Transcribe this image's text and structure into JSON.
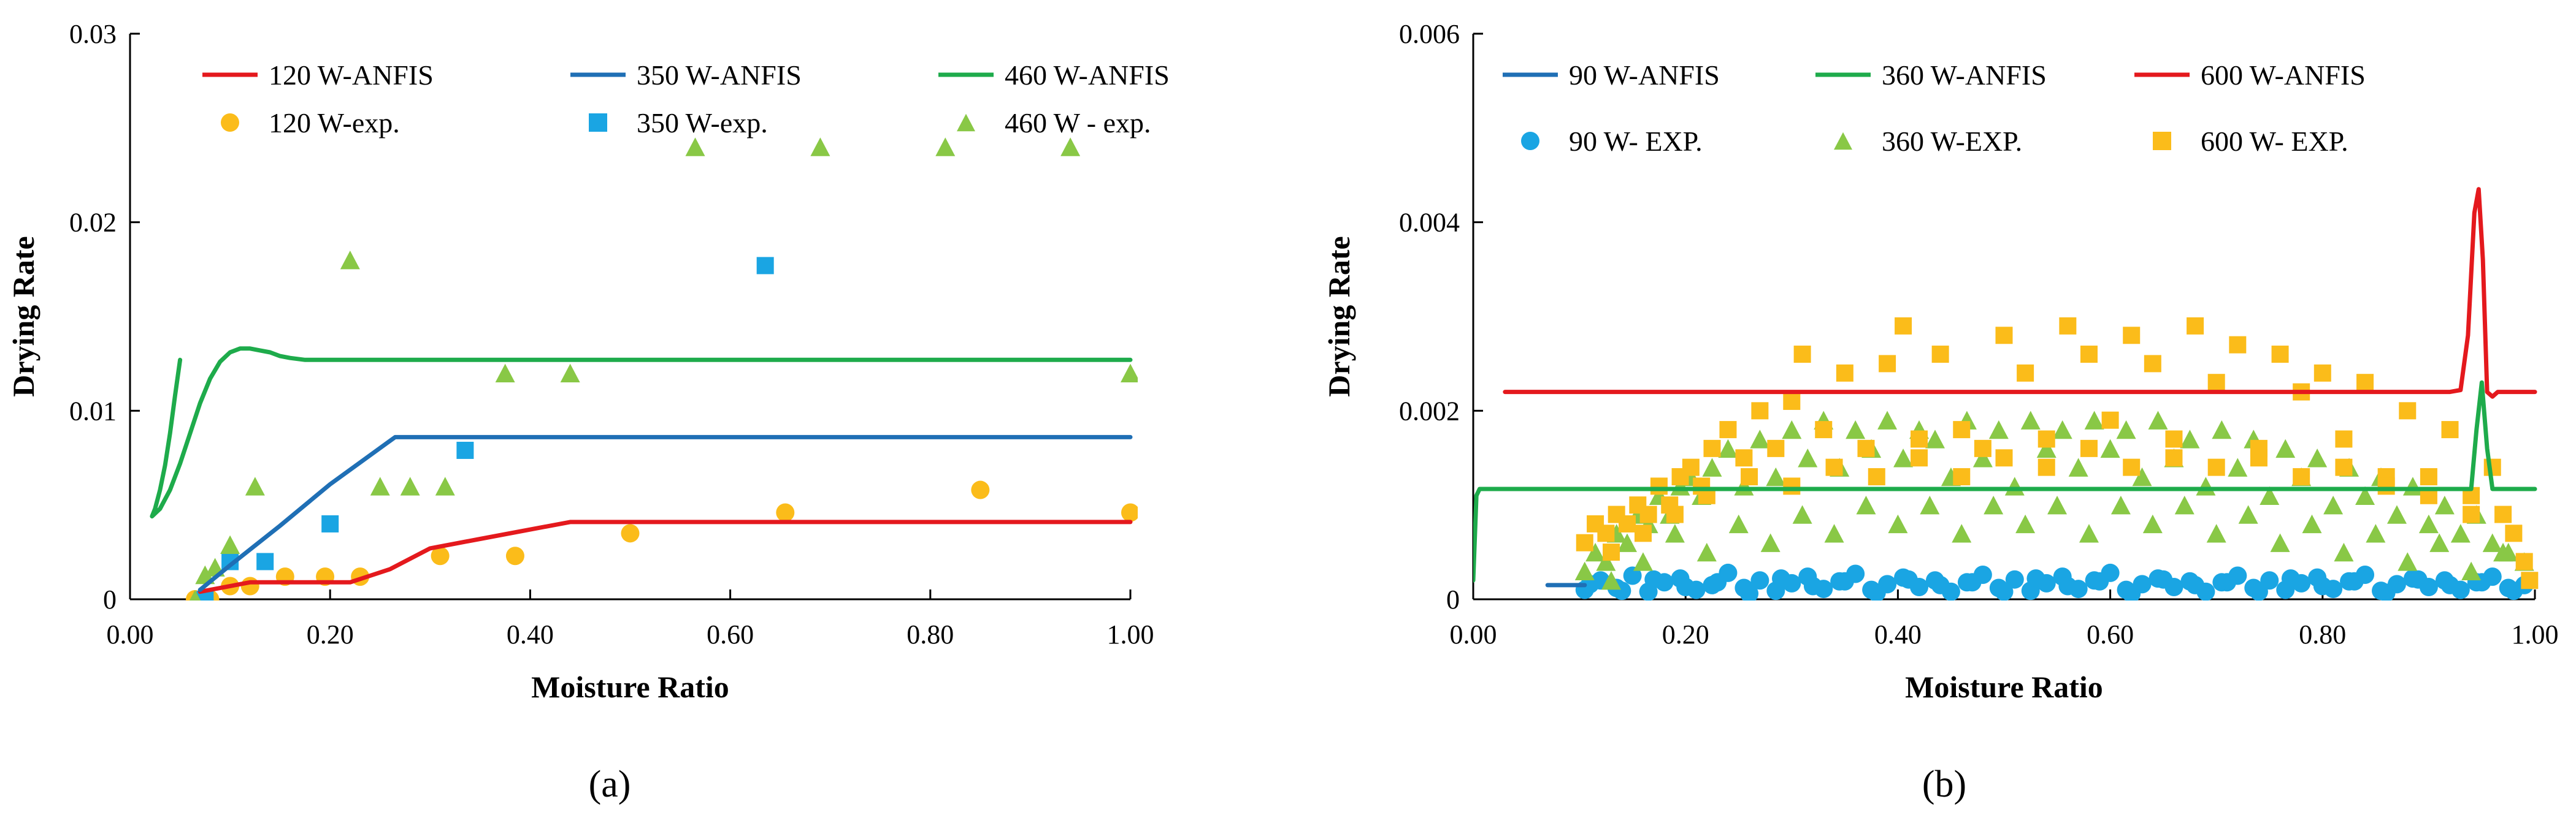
{
  "chart_data": [
    {
      "panel_label": "(a)",
      "type": "line",
      "xlabel": "Moisture Ratio",
      "ylabel": "Drying Rate",
      "xlim": [
        0,
        1
      ],
      "ylim": [
        0,
        0.03
      ],
      "x_ticks": [
        "0.00",
        "0.20",
        "0.40",
        "0.60",
        "0.80",
        "1.00"
      ],
      "y_ticks": [
        "0",
        "0.01",
        "0.02",
        "0.03"
      ],
      "grid": false,
      "legend": "top, 3 columns",
      "series": [
        {
          "name": "120 W-ANFIS",
          "kind": "line",
          "color": "#e4191d",
          "x": [
            0.07,
            0.12,
            0.2,
            0.22,
            0.26,
            0.3,
            0.35,
            0.44,
            0.6,
            0.8,
            1.0
          ],
          "y": [
            0.0004,
            0.0009,
            0.0009,
            0.0009,
            0.0016,
            0.0027,
            0.0032,
            0.0041,
            0.0041,
            0.0041,
            0.0041
          ]
        },
        {
          "name": "350 W-ANFIS",
          "kind": "line",
          "color": "#1f6fb5",
          "x": [
            0.07,
            0.1,
            0.15,
            0.2,
            0.265,
            0.4,
            0.6,
            0.8,
            1.0
          ],
          "y": [
            0.0005,
            0.0018,
            0.0039,
            0.0061,
            0.0086,
            0.0086,
            0.0086,
            0.0086,
            0.0086
          ]
        },
        {
          "name": "460 W-ANFIS",
          "kind": "line",
          "color": "#1eab4b",
          "x": [
            0.05,
            0.045,
            0.04,
            0.035,
            0.03,
            0.025,
            0.022,
            0.03,
            0.04,
            0.05,
            0.06,
            0.07,
            0.08,
            0.09,
            0.1,
            0.11,
            0.12,
            0.13,
            0.14,
            0.15,
            0.16,
            0.175,
            0.2,
            0.3,
            0.5,
            0.7,
            1.0
          ],
          "y": [
            0.0127,
            0.0108,
            0.0088,
            0.0071,
            0.0058,
            0.0048,
            0.0044,
            0.0048,
            0.0058,
            0.0072,
            0.0088,
            0.0104,
            0.0117,
            0.0126,
            0.0131,
            0.0133,
            0.0133,
            0.0132,
            0.0131,
            0.0129,
            0.0128,
            0.0127,
            0.0127,
            0.0127,
            0.0127,
            0.0127,
            0.0127
          ]
        },
        {
          "name": "120 W-exp.",
          "kind": "circle",
          "color": "#fbbc1a",
          "x": [
            0.065,
            0.08,
            0.1,
            0.12,
            0.155,
            0.195,
            0.23,
            0.31,
            0.385,
            0.5,
            0.655,
            0.85,
            1.0
          ],
          "y": [
            0.0,
            0.0,
            0.0007,
            0.0007,
            0.0012,
            0.0012,
            0.0012,
            0.0023,
            0.0023,
            0.0035,
            0.0046,
            0.0058,
            0.0046
          ]
        },
        {
          "name": "350 W-exp.",
          "kind": "square",
          "color": "#1aa5e3",
          "x": [
            0.075,
            0.1,
            0.135,
            0.2,
            0.335,
            0.635
          ],
          "y": [
            0.0,
            0.002,
            0.002,
            0.004,
            0.0079,
            0.0177
          ]
        },
        {
          "name": "460 W - exp.",
          "kind": "triangle",
          "color": "#89c846",
          "x": [
            0.065,
            0.075,
            0.085,
            0.1,
            0.125,
            0.22,
            0.25,
            0.28,
            0.315,
            0.375,
            0.44,
            0.565,
            0.69,
            0.815,
            0.94,
            1.0
          ],
          "y": [
            0.0,
            0.0013,
            0.0017,
            0.0029,
            0.006,
            0.018,
            0.006,
            0.006,
            0.006,
            0.012,
            0.012,
            0.024,
            0.024,
            0.024,
            0.024,
            0.012
          ]
        }
      ]
    },
    {
      "panel_label": "(b)",
      "type": "line",
      "xlabel": "Moisture Ratio",
      "ylabel": "Drying Rate",
      "xlim": [
        0,
        1
      ],
      "ylim": [
        0,
        0.006
      ],
      "x_ticks": [
        "0.00",
        "0.20",
        "0.40",
        "0.60",
        "0.80",
        "1.00"
      ],
      "y_ticks": [
        "0",
        "0.002",
        "0.004",
        "0.006"
      ],
      "grid": false,
      "legend": "top, 3 columns",
      "series": [
        {
          "name": "90 W-ANFIS",
          "kind": "line",
          "color": "#1f6fb5",
          "x": [
            0.07,
            0.105
          ],
          "y": [
            0.00015,
            0.00015
          ]
        },
        {
          "name": "360 W-ANFIS",
          "kind": "line",
          "color": "#1eab4b",
          "x": [
            0.0,
            0.003,
            0.006,
            0.5,
            0.94,
            0.945,
            0.95,
            0.955,
            0.96,
            1.0
          ],
          "y": [
            0.0002,
            0.0011,
            0.00117,
            0.00117,
            0.00117,
            0.0018,
            0.0023,
            0.0016,
            0.00117,
            0.00117
          ]
        },
        {
          "name": "600 W-ANFIS",
          "kind": "line",
          "color": "#e4191d",
          "x": [
            0.03,
            0.5,
            0.92,
            0.93,
            0.937,
            0.943,
            0.947,
            0.951,
            0.955,
            0.96,
            0.965,
            1.0
          ],
          "y": [
            0.0022,
            0.0022,
            0.0022,
            0.00222,
            0.0028,
            0.0041,
            0.00435,
            0.0036,
            0.0022,
            0.00215,
            0.0022,
            0.0022
          ]
        },
        {
          "name": "90 W- EXP.",
          "kind": "circle",
          "color": "#1aa5e3",
          "points_note": "dense band of points",
          "x": [
            0.105,
            0.12,
            0.135,
            0.15,
            0.165,
            0.18,
            0.195,
            0.21,
            0.225,
            0.24,
            0.255,
            0.27,
            0.285,
            0.3,
            0.315,
            0.33,
            0.345,
            0.36,
            0.375,
            0.39,
            0.405,
            0.42,
            0.435,
            0.45,
            0.465,
            0.48,
            0.495,
            0.51,
            0.525,
            0.54,
            0.555,
            0.57,
            0.585,
            0.6,
            0.615,
            0.63,
            0.645,
            0.66,
            0.675,
            0.69,
            0.705,
            0.72,
            0.735,
            0.75,
            0.765,
            0.78,
            0.795,
            0.81,
            0.825,
            0.84,
            0.855,
            0.87,
            0.885,
            0.9,
            0.915,
            0.93,
            0.945,
            0.96,
            0.975,
            0.99,
            0.11,
            0.14,
            0.17,
            0.2,
            0.23,
            0.26,
            0.29,
            0.32,
            0.35,
            0.38,
            0.41,
            0.44,
            0.47,
            0.5,
            0.53,
            0.56,
            0.59,
            0.62,
            0.65,
            0.68,
            0.71,
            0.74,
            0.77,
            0.8,
            0.83,
            0.86,
            0.89,
            0.92,
            0.95,
            0.98
          ],
          "y": [
            0.0001,
            0.0002,
            0.00012,
            0.00025,
            8e-05,
            0.00018,
            0.00022,
            0.0001,
            0.00015,
            0.00028,
            0.00012,
            0.0002,
            9e-05,
            0.00017,
            0.00024,
            0.00011,
            0.00019,
            0.00027,
            0.0001,
            0.00016,
            0.00023,
            0.00013,
            0.0002,
            8e-05,
            0.00018,
            0.00026,
            0.00012,
            0.00021,
            9e-05,
            0.00017,
            0.00024,
            0.00011,
            0.0002,
            0.00028,
            0.0001,
            0.00016,
            0.00022,
            0.00013,
            0.00019,
            8e-05,
            0.00018,
            0.00025,
            0.00012,
            0.0002,
            0.0001,
            0.00017,
            0.00023,
            0.00011,
            0.00019,
            0.00026,
            9e-05,
            0.00016,
            0.00022,
            0.00013,
            0.0002,
            0.0001,
            0.00018,
            0.00024,
            0.00012,
            0.00015,
            0.00016,
            9e-05,
            0.00021,
            0.00013,
            0.00018,
            6e-05,
            0.00022,
            0.00014,
            0.00019,
            7e-05,
            0.00021,
            0.00015,
            0.00018,
            8e-05,
            0.00022,
            0.00014,
            0.00019,
            6e-05,
            0.00021,
            0.00015,
            0.00018,
            8e-05,
            0.00022,
            0.00014,
            0.00019,
            7e-05,
            0.00021,
            0.00015,
            0.00018,
            9e-05
          ]
        },
        {
          "name": "360 W-EXP.",
          "kind": "triangle",
          "color": "#89c846",
          "x": [
            0.105,
            0.115,
            0.125,
            0.135,
            0.145,
            0.155,
            0.165,
            0.175,
            0.185,
            0.195,
            0.205,
            0.215,
            0.225,
            0.24,
            0.255,
            0.27,
            0.285,
            0.3,
            0.315,
            0.33,
            0.345,
            0.36,
            0.375,
            0.39,
            0.405,
            0.42,
            0.435,
            0.45,
            0.465,
            0.48,
            0.495,
            0.51,
            0.525,
            0.54,
            0.555,
            0.57,
            0.585,
            0.6,
            0.615,
            0.63,
            0.645,
            0.66,
            0.675,
            0.69,
            0.705,
            0.72,
            0.735,
            0.75,
            0.765,
            0.78,
            0.795,
            0.81,
            0.825,
            0.84,
            0.855,
            0.87,
            0.885,
            0.9,
            0.915,
            0.93,
            0.945,
            0.96,
            0.975,
            0.99,
            0.13,
            0.16,
            0.19,
            0.22,
            0.25,
            0.28,
            0.31,
            0.34,
            0.37,
            0.4,
            0.43,
            0.46,
            0.49,
            0.52,
            0.55,
            0.58,
            0.61,
            0.64,
            0.67,
            0.7,
            0.73,
            0.76,
            0.79,
            0.82,
            0.85,
            0.88,
            0.91,
            0.94,
            0.97
          ],
          "y": [
            0.0003,
            0.0005,
            0.0004,
            0.0007,
            0.0006,
            0.0009,
            0.0008,
            0.0011,
            0.0009,
            0.0012,
            0.0013,
            0.0011,
            0.0014,
            0.0016,
            0.0012,
            0.0017,
            0.0013,
            0.0018,
            0.0015,
            0.0019,
            0.0014,
            0.0018,
            0.0016,
            0.0019,
            0.0015,
            0.0018,
            0.0017,
            0.0013,
            0.0019,
            0.0015,
            0.0018,
            0.0012,
            0.0019,
            0.0016,
            0.0018,
            0.0014,
            0.0019,
            0.0016,
            0.0018,
            0.0013,
            0.0019,
            0.0015,
            0.0017,
            0.0012,
            0.0018,
            0.0014,
            0.0017,
            0.0011,
            0.0016,
            0.0013,
            0.0015,
            0.001,
            0.0014,
            0.0011,
            0.0013,
            0.0009,
            0.0012,
            0.0008,
            0.001,
            0.0007,
            0.0009,
            0.0006,
            0.0005,
            0.0004,
            0.0002,
            0.0004,
            0.0007,
            0.0005,
            0.0008,
            0.0006,
            0.0009,
            0.0007,
            0.001,
            0.0008,
            0.001,
            0.0007,
            0.001,
            0.0008,
            0.001,
            0.0007,
            0.001,
            0.0008,
            0.001,
            0.0007,
            0.0009,
            0.0006,
            0.0008,
            0.0005,
            0.0007,
            0.0004,
            0.0006,
            0.0003,
            0.0005
          ]
        },
        {
          "name": "600 W- EXP.",
          "kind": "square",
          "color": "#fbbc1a",
          "x": [
            0.105,
            0.115,
            0.125,
            0.135,
            0.145,
            0.155,
            0.165,
            0.175,
            0.185,
            0.195,
            0.205,
            0.215,
            0.225,
            0.24,
            0.255,
            0.27,
            0.285,
            0.3,
            0.31,
            0.33,
            0.35,
            0.37,
            0.39,
            0.405,
            0.42,
            0.44,
            0.46,
            0.48,
            0.5,
            0.52,
            0.54,
            0.56,
            0.58,
            0.6,
            0.62,
            0.64,
            0.66,
            0.68,
            0.7,
            0.72,
            0.74,
            0.76,
            0.78,
            0.8,
            0.82,
            0.84,
            0.86,
            0.88,
            0.9,
            0.92,
            0.94,
            0.96,
            0.98,
            0.99,
            0.13,
            0.16,
            0.19,
            0.22,
            0.26,
            0.3,
            0.34,
            0.38,
            0.42,
            0.46,
            0.5,
            0.54,
            0.58,
            0.62,
            0.66,
            0.7,
            0.74,
            0.78,
            0.82,
            0.86,
            0.9,
            0.94,
            0.97,
            0.995
          ],
          "y": [
            0.0006,
            0.0008,
            0.0007,
            0.0009,
            0.0008,
            0.001,
            0.0009,
            0.0012,
            0.001,
            0.0013,
            0.0014,
            0.0012,
            0.0016,
            0.0018,
            0.0015,
            0.002,
            0.0016,
            0.0021,
            0.0026,
            0.0018,
            0.0024,
            0.0016,
            0.0025,
            0.0029,
            0.0017,
            0.0026,
            0.0018,
            0.0016,
            0.0028,
            0.0024,
            0.0017,
            0.0029,
            0.0026,
            0.0019,
            0.0028,
            0.0025,
            0.0017,
            0.0029,
            0.0023,
            0.0027,
            0.0016,
            0.0026,
            0.0022,
            0.0024,
            0.0017,
            0.0023,
            0.0013,
            0.002,
            0.0011,
            0.0018,
            0.0009,
            0.0014,
            0.0007,
            0.0004,
            0.0005,
            0.0007,
            0.0009,
            0.0011,
            0.0013,
            0.0012,
            0.0014,
            0.0013,
            0.0015,
            0.0013,
            0.0015,
            0.0014,
            0.0016,
            0.0014,
            0.0015,
            0.0014,
            0.0015,
            0.0013,
            0.0014,
            0.0012,
            0.0013,
            0.0011,
            0.0009,
            0.0002
          ]
        }
      ]
    }
  ]
}
